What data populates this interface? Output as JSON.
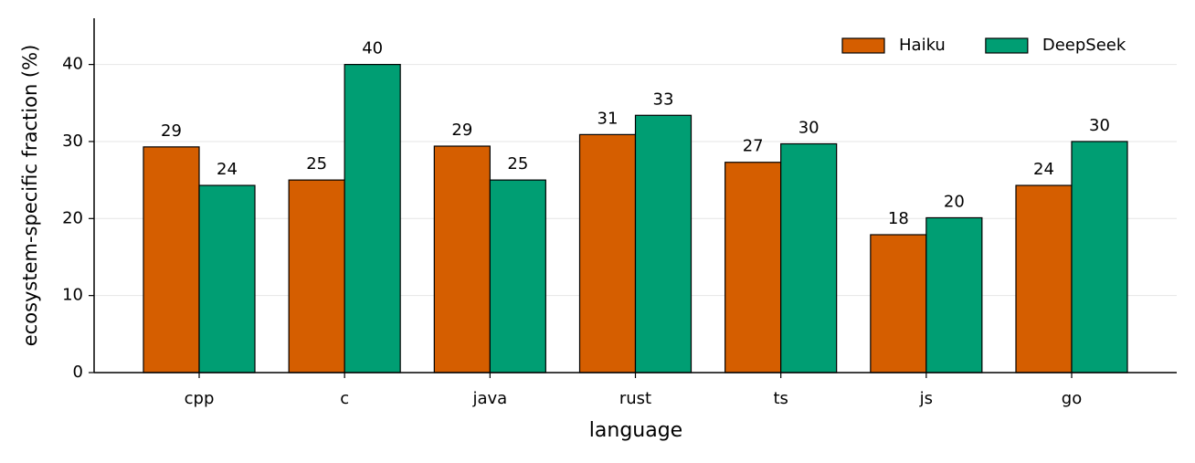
{
  "chart_data": {
    "type": "bar",
    "x_label": "language",
    "y_label": "ecosystem-specific fraction (%)",
    "categories": [
      "cpp",
      "c",
      "java",
      "rust",
      "ts",
      "js",
      "go"
    ],
    "series": [
      {
        "name": "Haiku",
        "color": "#d55e00",
        "values": [
          29.3,
          25.0,
          29.4,
          30.9,
          27.3,
          17.9,
          24.3
        ],
        "value_labels": [
          "29",
          "25",
          "29",
          "31",
          "27",
          "18",
          "24"
        ]
      },
      {
        "name": "DeepSeek",
        "color": "#009e73",
        "values": [
          24.3,
          40.0,
          25.0,
          33.4,
          29.7,
          20.1,
          30.0
        ],
        "value_labels": [
          "24",
          "40",
          "25",
          "33",
          "30",
          "20",
          "30"
        ]
      }
    ],
    "ylim": [
      0,
      46
    ],
    "yticks": [
      0,
      10,
      20,
      30,
      40
    ],
    "grid": true,
    "legend": "upper right"
  }
}
